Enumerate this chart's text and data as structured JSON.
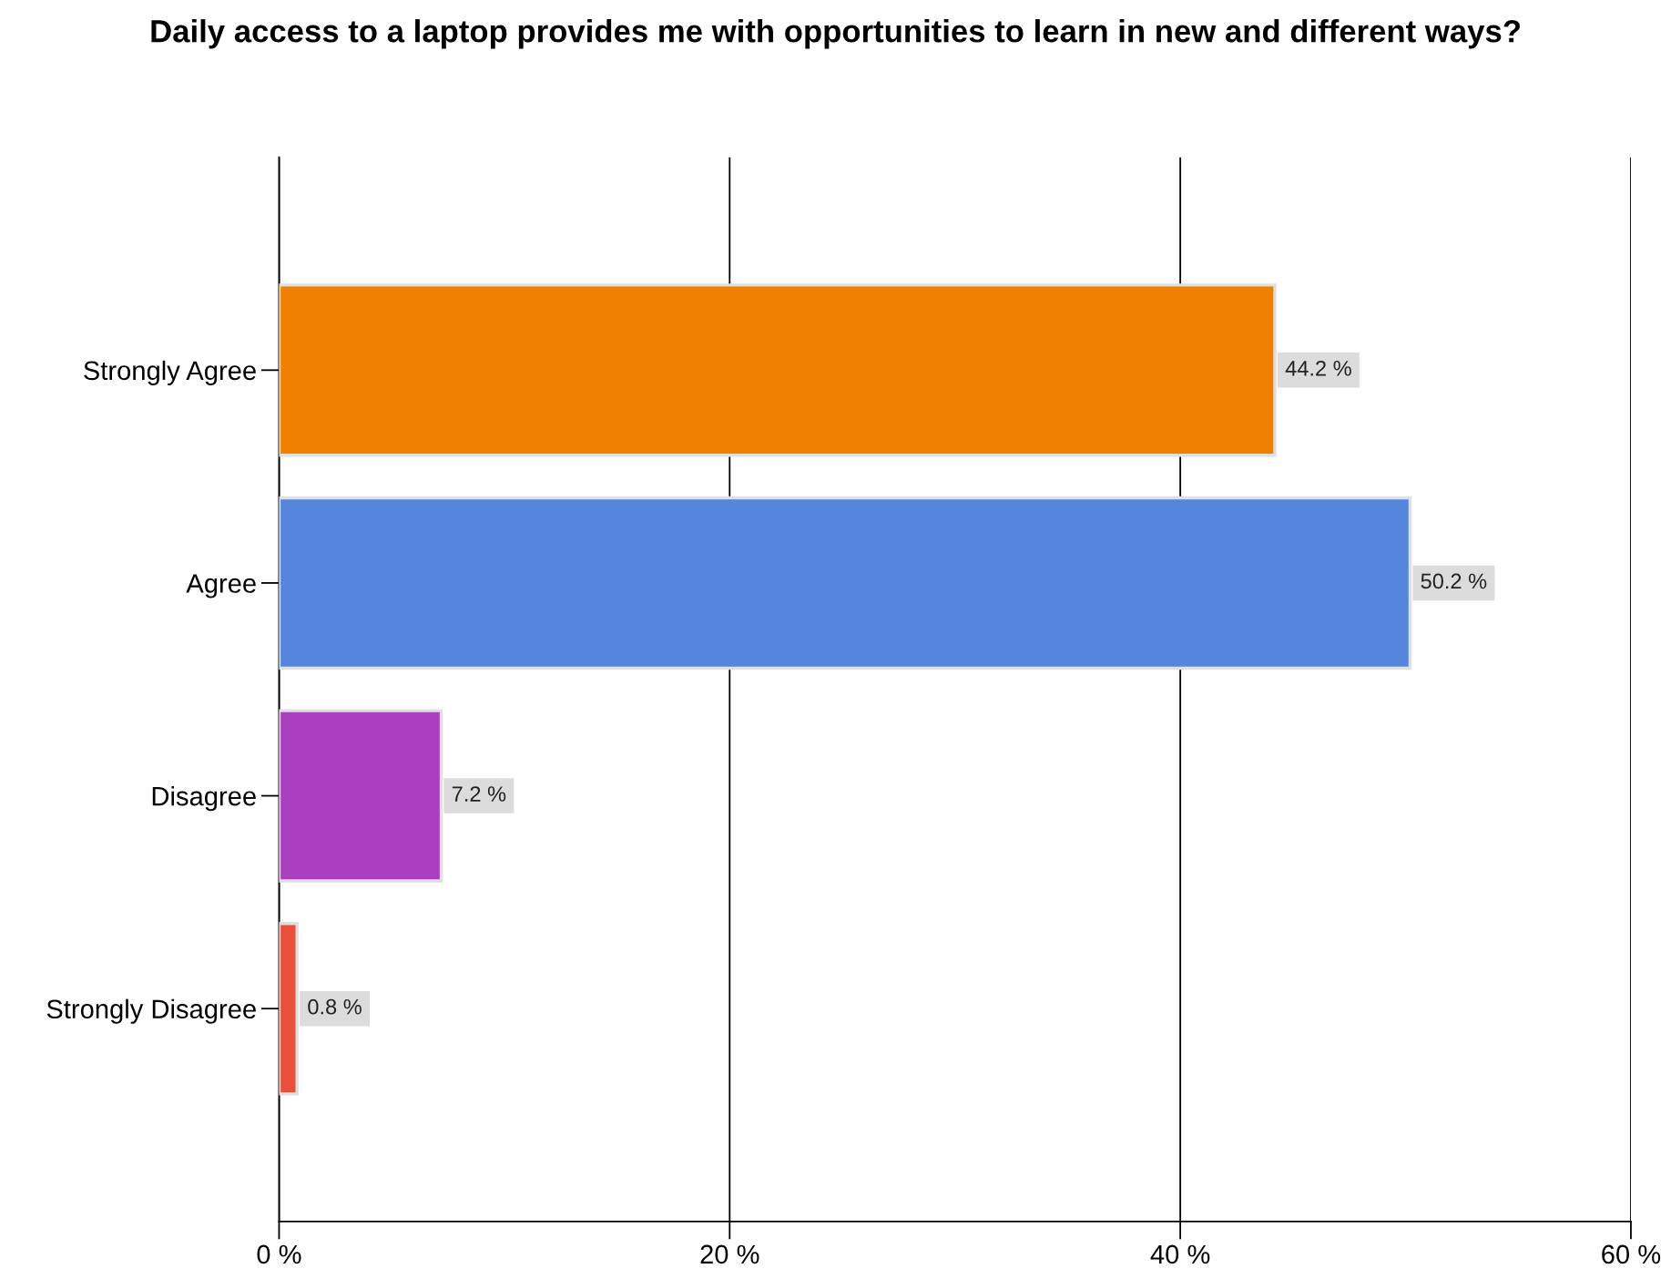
{
  "chart_data": {
    "type": "bar",
    "orientation": "horizontal",
    "title": "Daily access to a laptop provides me with opportunities to learn in new and different ways?",
    "categories": [
      "Strongly Agree",
      "Agree",
      "Disagree",
      "Strongly Disagree"
    ],
    "values": [
      44.2,
      50.2,
      7.2,
      0.8
    ],
    "value_labels": [
      "44.2 %",
      "50.2 %",
      "7.2 %",
      "0.8 %"
    ],
    "colors": [
      "#f08000",
      "#5585dc",
      "#a840c0",
      "#e8503a"
    ],
    "xlim": [
      0,
      60
    ],
    "xticks": [
      {
        "value": 0,
        "label": "0 %"
      },
      {
        "value": 20,
        "label": "20 %"
      },
      {
        "value": 40,
        "label": "40 %"
      },
      {
        "value": 60,
        "label": "60 %"
      }
    ],
    "grid": "x",
    "legend": false
  }
}
